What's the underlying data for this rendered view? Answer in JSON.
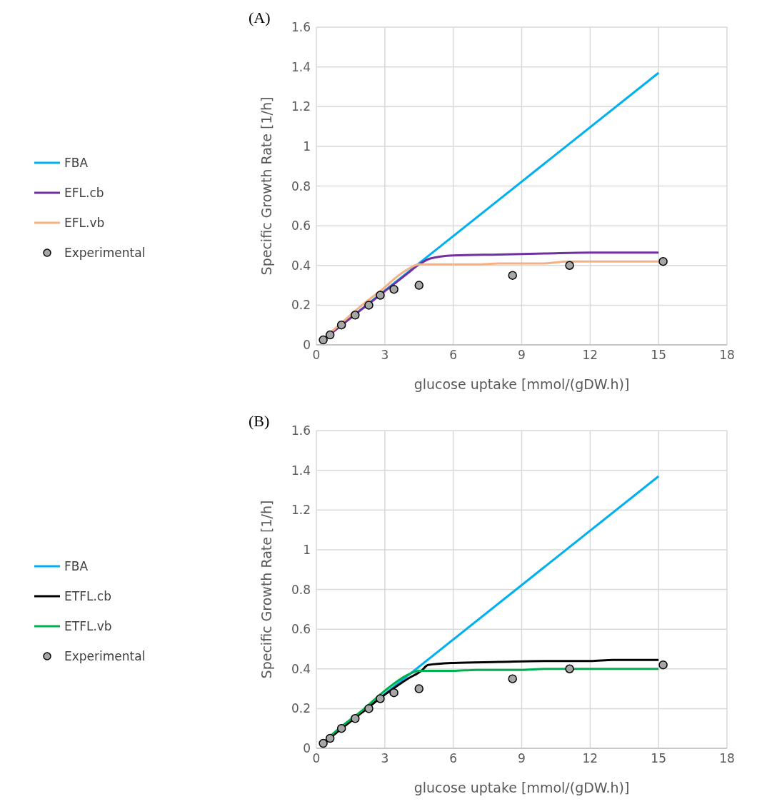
{
  "chart_data": [
    {
      "type": "line",
      "title": "(A)",
      "xlabel": "glucose uptake [mmol/(gDW.h)]",
      "ylabel": "Specific Growth Rate [1/h]",
      "xlim": [
        0,
        18
      ],
      "xticks": [
        0,
        3,
        6,
        9,
        12,
        15,
        18
      ],
      "ylim": [
        0,
        1.6
      ],
      "yticks": [
        0,
        0.2,
        0.4,
        0.6,
        0.8,
        1,
        1.2,
        1.4,
        1.6
      ],
      "grid": true,
      "legend": "left",
      "series": [
        {
          "name": "FBA",
          "color": "#00b0f0",
          "x": [
            0.3,
            15
          ],
          "values": [
            0.027,
            1.37
          ]
        },
        {
          "name": "EFL.cb",
          "color": "#7030a0",
          "x": [
            0.3,
            1,
            2,
            3,
            4,
            4.5,
            5,
            6,
            8,
            10,
            12,
            15
          ],
          "values": [
            0.025,
            0.09,
            0.18,
            0.27,
            0.36,
            0.405,
            0.435,
            0.45,
            0.455,
            0.46,
            0.465,
            0.465
          ]
        },
        {
          "name": "EFL.vb",
          "color": "#f4b183",
          "x": [
            0.3,
            1,
            2,
            3,
            3.5,
            4,
            4.5,
            6,
            7,
            8,
            10,
            11,
            15
          ],
          "values": [
            0.03,
            0.1,
            0.2,
            0.29,
            0.34,
            0.38,
            0.405,
            0.405,
            0.405,
            0.41,
            0.41,
            0.42,
            0.42
          ]
        },
        {
          "name": "Experimental",
          "type": "scatter",
          "marker": "circle",
          "color": "#a6a6a6",
          "x": [
            0.3,
            0.6,
            1.1,
            1.7,
            2.3,
            2.8,
            3.4,
            4.5,
            8.6,
            11.1,
            15.2
          ],
          "values": [
            0.025,
            0.05,
            0.1,
            0.15,
            0.2,
            0.25,
            0.28,
            0.3,
            0.35,
            0.4,
            0.42
          ]
        }
      ]
    },
    {
      "type": "line",
      "title": "(B)",
      "xlabel": "glucose uptake [mmol/(gDW.h)]",
      "ylabel": "Specific Growth Rate [1/h]",
      "xlim": [
        0,
        18
      ],
      "xticks": [
        0,
        3,
        6,
        9,
        12,
        15,
        18
      ],
      "ylim": [
        0,
        1.6
      ],
      "yticks": [
        0,
        0.2,
        0.4,
        0.6,
        0.8,
        1,
        1.2,
        1.4,
        1.6
      ],
      "grid": true,
      "legend": "left",
      "series": [
        {
          "name": "FBA",
          "color": "#00b0f0",
          "x": [
            0.3,
            15
          ],
          "values": [
            0.027,
            1.37
          ]
        },
        {
          "name": "ETFL.cb",
          "color": "#000000",
          "x": [
            0.3,
            1,
            2,
            3,
            4,
            4.6,
            4.9,
            6,
            8,
            10,
            12,
            13,
            15
          ],
          "values": [
            0.025,
            0.09,
            0.18,
            0.27,
            0.35,
            0.39,
            0.42,
            0.43,
            0.435,
            0.44,
            0.44,
            0.445,
            0.445
          ]
        },
        {
          "name": "ETFL.vb",
          "color": "#00b050",
          "x": [
            0.3,
            1,
            2,
            3,
            4,
            4.5,
            6,
            7,
            9,
            10,
            15
          ],
          "values": [
            0.03,
            0.1,
            0.19,
            0.29,
            0.37,
            0.39,
            0.39,
            0.395,
            0.395,
            0.4,
            0.4
          ]
        },
        {
          "name": "Experimental",
          "type": "scatter",
          "marker": "circle",
          "color": "#a6a6a6",
          "x": [
            0.3,
            0.6,
            1.1,
            1.7,
            2.3,
            2.8,
            3.4,
            4.5,
            8.6,
            11.1,
            15.2
          ],
          "values": [
            0.025,
            0.05,
            0.1,
            0.15,
            0.2,
            0.25,
            0.28,
            0.3,
            0.35,
            0.4,
            0.42
          ]
        }
      ]
    }
  ]
}
